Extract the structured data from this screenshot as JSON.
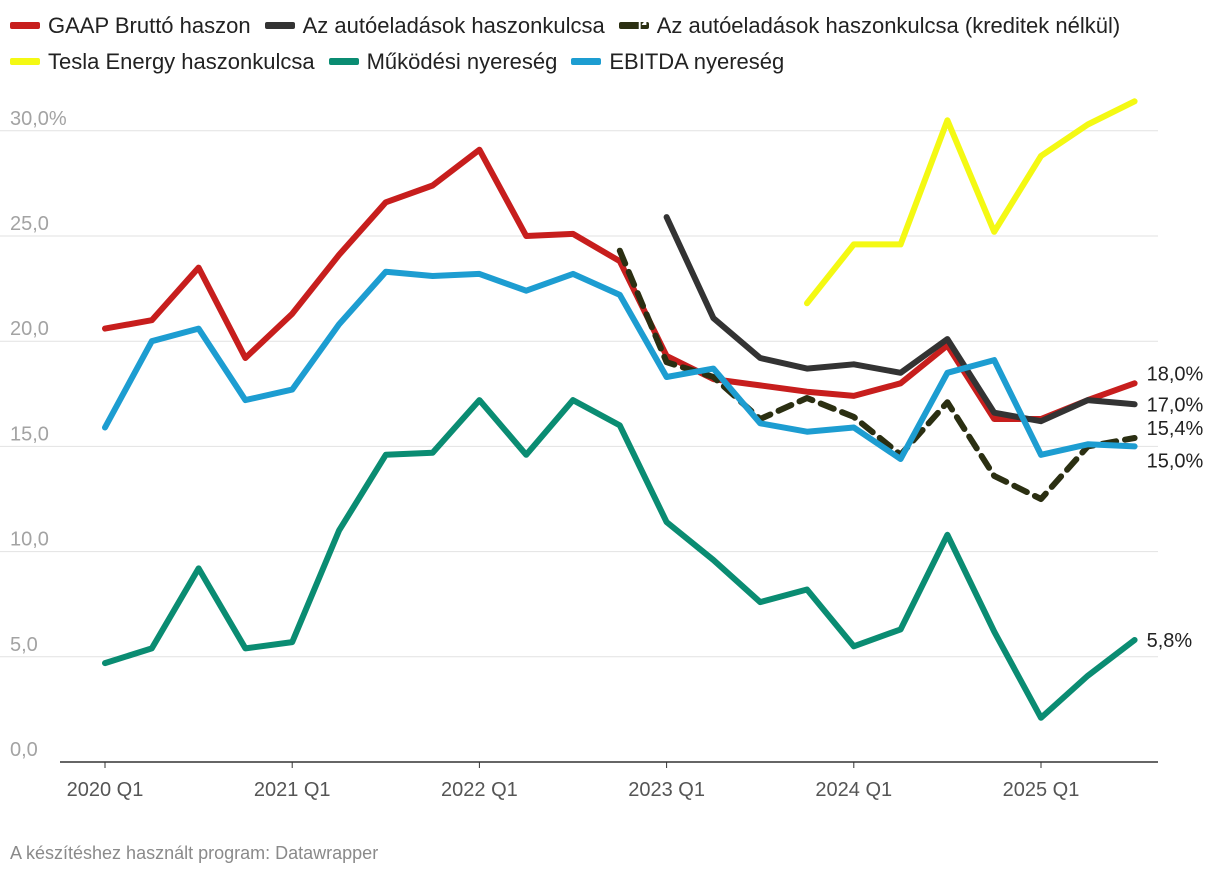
{
  "chart_data": {
    "type": "line",
    "title": "",
    "xlabel": "",
    "ylabel": "",
    "ylim": [
      0,
      30
    ],
    "yticks": [
      "0,0",
      "5,0",
      "10,0",
      "15,0",
      "20,0",
      "25,0",
      "30,0%"
    ],
    "ytick_values": [
      0,
      5,
      10,
      15,
      20,
      25,
      30
    ],
    "xticks": [
      {
        "label": "2020 Q1",
        "index": 0
      },
      {
        "label": "2021 Q1",
        "index": 4
      },
      {
        "label": "2022 Q1",
        "index": 8
      },
      {
        "label": "2023 Q1",
        "index": 12
      },
      {
        "label": "2024 Q1",
        "index": 16
      },
      {
        "label": "2025 Q1",
        "index": 20
      }
    ],
    "categories": [
      "2020 Q1",
      "2020 Q2",
      "2020 Q3",
      "2020 Q4",
      "2021 Q1",
      "2021 Q2",
      "2021 Q3",
      "2021 Q4",
      "2022 Q1",
      "2022 Q2",
      "2022 Q3",
      "2022 Q4",
      "2023 Q1",
      "2023 Q2",
      "2023 Q3",
      "2023 Q4",
      "2024 Q1",
      "2024 Q2",
      "2024 Q3",
      "2024 Q4",
      "2025 Q1",
      "2025 Q2",
      "2025 Q3"
    ],
    "series": [
      {
        "name": "GAAP Bruttó haszon",
        "color": "#c71e1d",
        "dashed": false,
        "values": [
          20.6,
          21.0,
          23.5,
          19.2,
          21.3,
          24.1,
          26.6,
          27.4,
          29.1,
          25.0,
          25.1,
          23.8,
          19.3,
          18.2,
          17.9,
          17.6,
          17.4,
          18.0,
          19.8,
          16.3,
          16.3,
          17.2,
          18.0
        ],
        "end_label": "18,0%"
      },
      {
        "name": "Az autóeladások haszonkulcsa",
        "color": "#333333",
        "dashed": false,
        "values": [
          null,
          null,
          null,
          null,
          null,
          null,
          null,
          null,
          null,
          null,
          null,
          null,
          25.9,
          21.1,
          19.2,
          18.7,
          18.9,
          18.5,
          20.1,
          16.6,
          16.2,
          17.2,
          17.0
        ],
        "end_label": "17,0%"
      },
      {
        "name": "Az autóeladások haszonkulcsa (kreditek nélkül)",
        "color": "#2b2f12",
        "dashed": true,
        "values": [
          null,
          null,
          null,
          null,
          null,
          null,
          null,
          null,
          null,
          null,
          null,
          24.3,
          19.0,
          18.3,
          16.3,
          17.3,
          16.4,
          14.6,
          17.1,
          13.6,
          12.5,
          15.0,
          15.4
        ],
        "end_label": "15,4%"
      },
      {
        "name": "Tesla Energy haszonkulcsa",
        "color": "#f4f913",
        "dashed": false,
        "values": [
          null,
          null,
          null,
          null,
          null,
          null,
          null,
          null,
          null,
          null,
          null,
          null,
          null,
          null,
          null,
          21.8,
          24.6,
          24.6,
          30.5,
          25.2,
          28.8,
          30.3,
          31.4
        ],
        "end_label": ""
      },
      {
        "name": "Működési nyereség",
        "color": "#0a8c72",
        "dashed": false,
        "values": [
          4.7,
          5.4,
          9.2,
          5.4,
          5.7,
          11.0,
          14.6,
          14.7,
          17.2,
          14.6,
          17.2,
          16.0,
          11.4,
          9.6,
          7.6,
          8.2,
          5.5,
          6.3,
          10.8,
          6.2,
          2.1,
          4.1,
          5.8
        ],
        "end_label": "5,8%"
      },
      {
        "name": "EBITDA nyereség",
        "color": "#1d9dd1",
        "dashed": false,
        "values": [
          15.9,
          20.0,
          20.6,
          17.2,
          17.7,
          20.8,
          23.3,
          23.1,
          23.2,
          22.4,
          23.2,
          22.2,
          18.3,
          18.7,
          16.1,
          15.7,
          15.9,
          14.4,
          18.5,
          19.1,
          14.6,
          15.1,
          15.0
        ],
        "end_label": "15,0%"
      }
    ]
  },
  "footer": {
    "text": "A készítéshez használt program: Datawrapper"
  }
}
